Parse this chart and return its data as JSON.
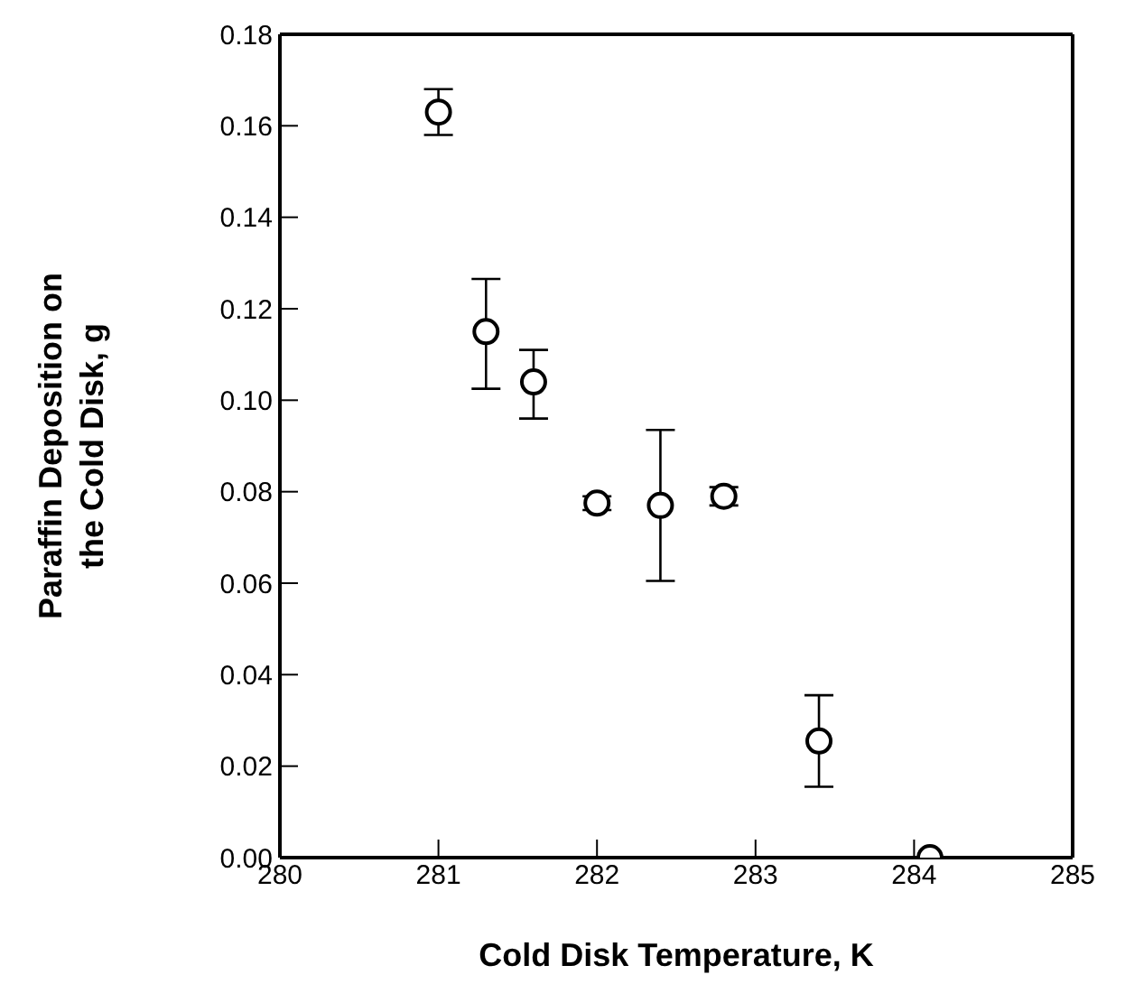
{
  "chart_data": {
    "type": "scatter",
    "xlabel": "Cold Disk Temperature, K",
    "ylabel": "Paraffin Deposition on the Cold Disk, g",
    "x": [
      281.0,
      281.3,
      281.6,
      282.0,
      282.4,
      282.8,
      283.4,
      284.1
    ],
    "values": [
      0.163,
      0.115,
      0.104,
      0.0775,
      0.077,
      0.079,
      0.0255,
      0
    ],
    "errors": [
      [
        0.158,
        0.168
      ],
      [
        0.1025,
        0.1265
      ],
      [
        0.096,
        0.111
      ],
      [
        0.076,
        0.079
      ],
      [
        0.0605,
        0.0935
      ],
      [
        0.077,
        0.081
      ],
      [
        0.0155,
        0.0355
      ],
      null
    ],
    "color": "#000000",
    "marker": "circle",
    "xlim": [
      280,
      285
    ],
    "xticks": [
      280,
      281,
      282,
      283,
      284,
      285
    ],
    "ylim": [
      0,
      0.18
    ],
    "yticks": [
      {
        "value": 0,
        "label": "0.00"
      },
      {
        "value": 0.02,
        "label": "0.02"
      },
      {
        "value": 0.04,
        "label": "0.04"
      },
      {
        "value": 0.06,
        "label": "0.06"
      },
      {
        "value": 0.08,
        "label": "0.08"
      },
      {
        "value": 0.1,
        "label": "0.10"
      },
      {
        "value": 0.12,
        "label": "0.12"
      },
      {
        "value": 0.14,
        "label": "0.14"
      },
      {
        "value": 0.16,
        "label": "0.16"
      },
      {
        "value": 0.18,
        "label": "0.18"
      }
    ]
  }
}
